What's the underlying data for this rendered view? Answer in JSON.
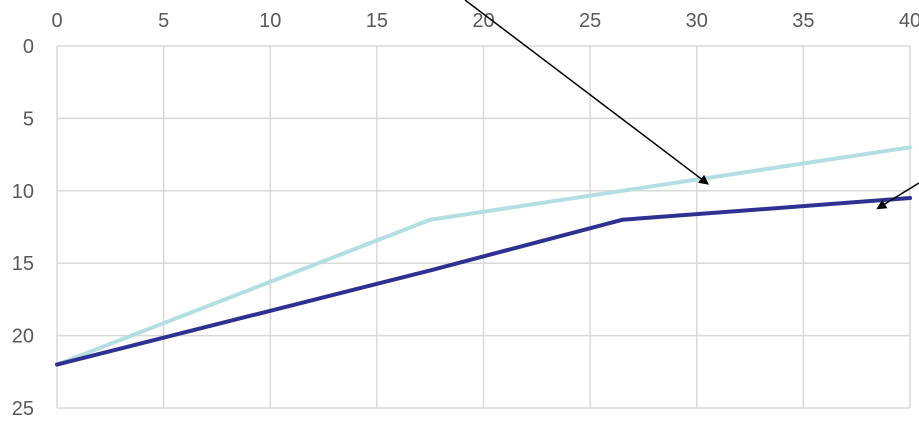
{
  "chart_data": {
    "type": "line",
    "title": "",
    "xlabel": "",
    "ylabel": "",
    "x_axis_position": "top",
    "y_axis_inverted": true,
    "xlim": [
      0,
      40
    ],
    "ylim": [
      0,
      25
    ],
    "x_ticks": [
      0,
      5,
      10,
      15,
      20,
      25,
      30,
      35,
      40
    ],
    "y_ticks": [
      0,
      5,
      10,
      15,
      20,
      25
    ],
    "x_tick_labels": [
      "0",
      "5",
      "10",
      "15",
      "20",
      "25",
      "30",
      "35",
      "40"
    ],
    "y_tick_labels": [
      "0",
      "5",
      "10",
      "15",
      "20",
      "25"
    ],
    "grid": true,
    "legend": "none",
    "series": [
      {
        "color": "#b4dfe2",
        "points": [
          [
            0,
            22
          ],
          [
            17.5,
            12
          ],
          [
            26.5,
            10
          ],
          [
            40,
            7
          ]
        ]
      },
      {
        "color": "#2e3192",
        "points": [
          [
            0,
            22
          ],
          [
            17.5,
            15.5
          ],
          [
            26.5,
            12
          ],
          [
            40,
            10.5
          ]
        ]
      }
    ],
    "annotations": [
      {
        "type": "arrow",
        "target_series": 0,
        "target": [
          30.5,
          9.5
        ]
      },
      {
        "type": "arrow",
        "target_series": 1,
        "target": [
          38.5,
          11.2
        ]
      }
    ]
  }
}
